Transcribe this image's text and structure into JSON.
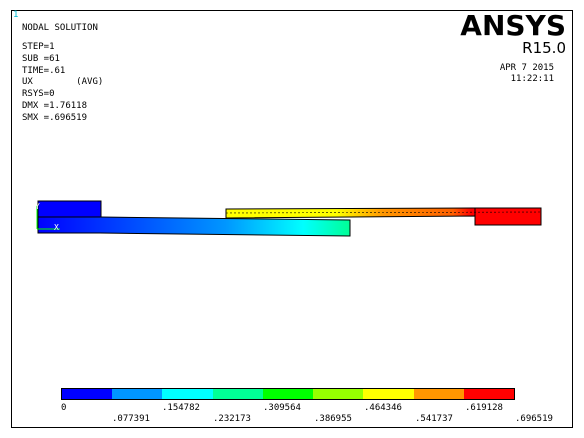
{
  "window_number": "1",
  "header": {
    "title": "NODAL SOLUTION",
    "lines": [
      "STEP=1",
      "SUB =61",
      "TIME=.61",
      "UX        (AVG)",
      "RSYS=0",
      "DMX =1.76118",
      "SMX =.696519"
    ]
  },
  "brand": {
    "name": "ANSYS",
    "release": "R15.0"
  },
  "timestamp": {
    "date": "APR  7 2015",
    "time": "11:22:11"
  },
  "axes": {
    "y_label": "Y",
    "x_label": "X"
  },
  "legend": {
    "colors": [
      "#0000ff",
      "#0096ff",
      "#00ffff",
      "#00ff96",
      "#00ff00",
      "#96ff00",
      "#ffff00",
      "#ff9600",
      "#ff0000"
    ],
    "top_labels": [
      "0",
      ".154782",
      ".309564",
      ".464346",
      ".619128"
    ],
    "bottom_labels": [
      ".077391",
      ".232173",
      ".386955",
      ".541737",
      ".696519"
    ]
  }
}
